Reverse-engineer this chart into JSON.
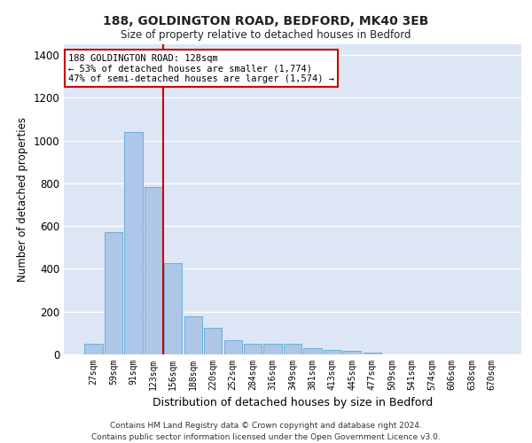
{
  "title1": "188, GOLDINGTON ROAD, BEDFORD, MK40 3EB",
  "title2": "Size of property relative to detached houses in Bedford",
  "xlabel": "Distribution of detached houses by size in Bedford",
  "ylabel": "Number of detached properties",
  "categories": [
    "27sqm",
    "59sqm",
    "91sqm",
    "123sqm",
    "156sqm",
    "188sqm",
    "220sqm",
    "252sqm",
    "284sqm",
    "316sqm",
    "349sqm",
    "381sqm",
    "413sqm",
    "445sqm",
    "477sqm",
    "509sqm",
    "541sqm",
    "574sqm",
    "606sqm",
    "638sqm",
    "670sqm"
  ],
  "values": [
    50,
    570,
    1040,
    785,
    425,
    180,
    125,
    65,
    50,
    50,
    50,
    28,
    20,
    15,
    10,
    0,
    0,
    0,
    0,
    0,
    0
  ],
  "bar_color": "#aec6e8",
  "bar_edgecolor": "#6aafd6",
  "background_color": "#dce6f5",
  "grid_color": "#ffffff",
  "ref_line_x": 3.5,
  "annotation_title": "188 GOLDINGTON ROAD: 128sqm",
  "annotation_line1": "← 53% of detached houses are smaller (1,774)",
  "annotation_line2": "47% of semi-detached houses are larger (1,574) →",
  "annotation_box_color": "#cc0000",
  "ylim": [
    0,
    1450
  ],
  "yticks": [
    0,
    200,
    400,
    600,
    800,
    1000,
    1200,
    1400
  ],
  "footer1": "Contains HM Land Registry data © Crown copyright and database right 2024.",
  "footer2": "Contains public sector information licensed under the Open Government Licence v3.0."
}
